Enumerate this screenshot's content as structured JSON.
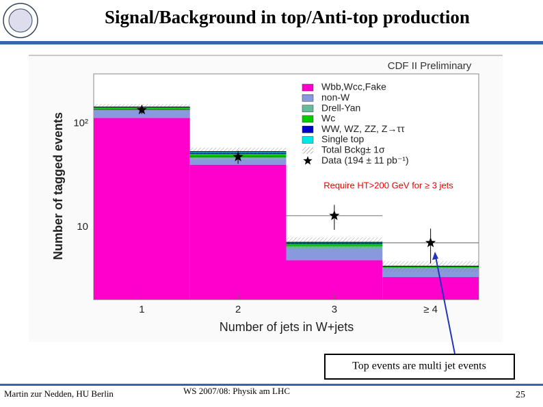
{
  "slide": {
    "title": "Signal/Background in top/Anti-top production",
    "callout": "Top events are multi jet events",
    "footer_left": "Martin zur Nedden, HU Berlin",
    "footer_center": "WS 2007/08: Physik am LHC",
    "page_number": "25"
  },
  "chart_data": {
    "type": "stacked_histogram",
    "title": "CDF II Preliminary",
    "annotation": "Require HT>200 GeV for ≥ 3 jets",
    "x_label": "Number of jets in W+jets",
    "y_label": "Number of tagged events",
    "categories": [
      "1",
      "2",
      "3",
      "≥ 4"
    ],
    "log_scale": true,
    "ylim": [
      2,
      300
    ],
    "yticks": [
      10,
      {
        "value": 100,
        "label": "10²"
      }
    ],
    "series": [
      {
        "name": "Wbb,Wcc,Fake",
        "color": "#ff00cc",
        "values": [
          113,
          40,
          4.8,
          3.3
        ]
      },
      {
        "name": "non-W",
        "color": "#8899dd",
        "values": [
          21,
          5.5,
          1.4,
          0.7
        ]
      },
      {
        "name": "Drell-Yan",
        "color": "#66bb99",
        "values": [
          2,
          1.5,
          0.3,
          0.05
        ]
      },
      {
        "name": "Wc",
        "color": "#00cc00",
        "values": [
          6,
          4,
          0.4,
          0.1
        ]
      },
      {
        "name": "WW, WZ, ZZ, Z→ττ",
        "color": "#0000cc",
        "values": [
          1,
          1.5,
          0.15,
          0.03
        ]
      },
      {
        "name": "Single top",
        "color": "#00e5e5",
        "values": [
          1,
          1,
          0.1,
          0.02
        ]
      }
    ],
    "total_error": {
      "name": "Total Bckg± 1σ",
      "values": [
        10,
        5,
        0.8,
        0.5
      ]
    },
    "data": {
      "name": "Data (194 ± 11 pb⁻¹)",
      "color": "#000000",
      "values": [
        135,
        47.6,
        12.9,
        7.06
      ],
      "errors": [
        11.6,
        6.9,
        3.5,
        2.6
      ]
    }
  }
}
